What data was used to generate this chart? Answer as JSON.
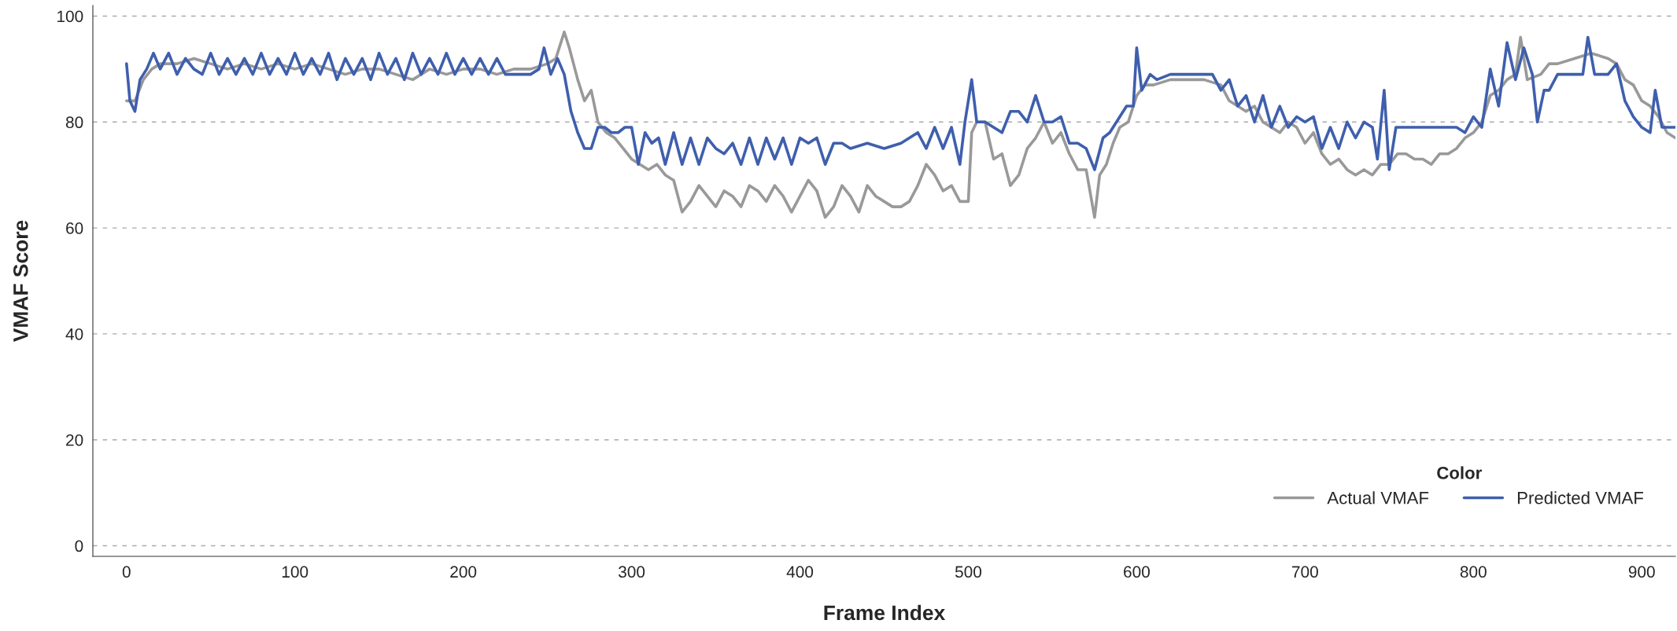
{
  "chart_data": {
    "type": "line",
    "xlabel": "Frame Index",
    "ylabel": "VMAF Score",
    "legend_title": "Color",
    "legend": "bottom right",
    "grid": "y",
    "line_style": "solid",
    "marker": "none",
    "xlim": [
      -20,
      920
    ],
    "ylim": [
      -2,
      102
    ],
    "xticks": [
      0,
      100,
      200,
      300,
      400,
      500,
      600,
      700,
      800,
      900
    ],
    "yticks": [
      0,
      20,
      40,
      60,
      80,
      100
    ],
    "series": [
      {
        "name": "Actual VMAF",
        "color": "#999999",
        "x": [
          0,
          5,
          10,
          15,
          20,
          30,
          40,
          50,
          60,
          70,
          80,
          90,
          100,
          110,
          120,
          130,
          140,
          150,
          160,
          170,
          180,
          190,
          200,
          210,
          220,
          230,
          240,
          250,
          255,
          260,
          263,
          268,
          272,
          276,
          280,
          285,
          290,
          295,
          300,
          305,
          310,
          315,
          320,
          325,
          330,
          335,
          340,
          345,
          350,
          355,
          360,
          365,
          370,
          375,
          380,
          385,
          390,
          395,
          400,
          405,
          410,
          415,
          420,
          425,
          430,
          435,
          440,
          445,
          450,
          455,
          460,
          465,
          470,
          475,
          480,
          485,
          490,
          495,
          500,
          502,
          505,
          510,
          515,
          520,
          525,
          530,
          535,
          540,
          545,
          550,
          555,
          560,
          565,
          570,
          575,
          578,
          582,
          586,
          590,
          595,
          600,
          605,
          610,
          620,
          630,
          640,
          650,
          655,
          660,
          665,
          670,
          675,
          680,
          685,
          690,
          695,
          700,
          705,
          710,
          715,
          720,
          725,
          730,
          735,
          740,
          745,
          750,
          755,
          760,
          765,
          770,
          775,
          780,
          785,
          790,
          795,
          800,
          805,
          810,
          815,
          820,
          825,
          828,
          832,
          840,
          845,
          850,
          860,
          870,
          880,
          885,
          890,
          895,
          900,
          905,
          910,
          915,
          920
        ],
        "values": [
          84,
          84,
          88,
          90,
          91,
          91,
          92,
          91,
          90,
          91,
          90,
          91,
          90,
          91,
          90,
          89,
          90,
          90,
          89,
          88,
          90,
          89,
          90,
          90,
          89,
          90,
          90,
          91,
          92,
          97,
          94,
          88,
          84,
          86,
          80,
          78,
          77,
          75,
          73,
          72,
          71,
          72,
          70,
          69,
          63,
          65,
          68,
          66,
          64,
          67,
          66,
          64,
          68,
          67,
          65,
          68,
          66,
          63,
          66,
          69,
          67,
          62,
          64,
          68,
          66,
          63,
          68,
          66,
          65,
          64,
          64,
          65,
          68,
          72,
          70,
          67,
          68,
          65,
          65,
          78,
          80,
          80,
          73,
          74,
          68,
          70,
          75,
          77,
          80,
          76,
          78,
          74,
          71,
          71,
          62,
          70,
          72,
          76,
          79,
          80,
          85,
          87,
          87,
          88,
          88,
          88,
          87,
          84,
          83,
          82,
          83,
          80,
          79,
          78,
          80,
          79,
          76,
          78,
          74,
          72,
          73,
          71,
          70,
          71,
          70,
          72,
          72,
          74,
          74,
          73,
          73,
          72,
          74,
          74,
          75,
          77,
          78,
          80,
          85,
          86,
          88,
          89,
          96,
          88,
          89,
          91,
          91,
          92,
          93,
          92,
          91,
          88,
          87,
          84,
          83,
          81,
          78,
          77
        ]
      },
      {
        "name": "Predicted VMAF",
        "color": "#3f5fad",
        "x": [
          0,
          2,
          5,
          8,
          12,
          16,
          20,
          25,
          30,
          35,
          40,
          45,
          50,
          55,
          60,
          65,
          70,
          75,
          80,
          85,
          90,
          95,
          100,
          105,
          110,
          115,
          120,
          125,
          130,
          135,
          140,
          145,
          150,
          155,
          160,
          165,
          170,
          175,
          180,
          185,
          190,
          195,
          200,
          205,
          210,
          215,
          220,
          225,
          230,
          240,
          245,
          248,
          252,
          256,
          260,
          264,
          268,
          272,
          276,
          280,
          284,
          288,
          292,
          296,
          300,
          304,
          308,
          312,
          316,
          320,
          325,
          330,
          335,
          340,
          345,
          350,
          355,
          360,
          365,
          370,
          375,
          380,
          385,
          390,
          395,
          400,
          405,
          410,
          415,
          420,
          425,
          430,
          440,
          450,
          460,
          470,
          475,
          480,
          485,
          490,
          495,
          498,
          502,
          505,
          510,
          515,
          520,
          525,
          530,
          535,
          540,
          545,
          550,
          555,
          560,
          565,
          570,
          575,
          580,
          584,
          590,
          594,
          598,
          600,
          603,
          608,
          612,
          620,
          630,
          640,
          645,
          650,
          655,
          660,
          665,
          670,
          675,
          680,
          685,
          690,
          695,
          700,
          705,
          710,
          715,
          720,
          725,
          730,
          735,
          740,
          743,
          747,
          750,
          754,
          760,
          770,
          780,
          790,
          795,
          800,
          805,
          810,
          815,
          820,
          825,
          830,
          835,
          838,
          842,
          845,
          850,
          855,
          860,
          865,
          868,
          872,
          880,
          885,
          890,
          895,
          900,
          905,
          908,
          912,
          916,
          920
        ],
        "values": [
          91,
          84,
          82,
          88,
          90,
          93,
          90,
          93,
          89,
          92,
          90,
          89,
          93,
          89,
          92,
          89,
          92,
          89,
          93,
          89,
          92,
          89,
          93,
          89,
          92,
          89,
          93,
          88,
          92,
          89,
          92,
          88,
          93,
          89,
          92,
          88,
          93,
          89,
          92,
          89,
          93,
          89,
          92,
          89,
          92,
          89,
          92,
          89,
          89,
          89,
          90,
          94,
          89,
          92,
          89,
          82,
          78,
          75,
          75,
          79,
          79,
          78,
          78,
          79,
          79,
          72,
          78,
          76,
          77,
          72,
          78,
          72,
          77,
          72,
          77,
          75,
          74,
          76,
          72,
          77,
          72,
          77,
          73,
          77,
          72,
          77,
          76,
          77,
          72,
          76,
          76,
          75,
          76,
          75,
          76,
          78,
          75,
          79,
          75,
          79,
          72,
          80,
          88,
          80,
          80,
          79,
          78,
          82,
          82,
          80,
          85,
          80,
          80,
          81,
          76,
          76,
          75,
          71,
          77,
          78,
          81,
          83,
          83,
          94,
          86,
          89,
          88,
          89,
          89,
          89,
          89,
          86,
          88,
          83,
          85,
          80,
          85,
          79,
          83,
          79,
          81,
          80,
          81,
          75,
          79,
          75,
          80,
          77,
          80,
          79,
          73,
          86,
          71,
          79,
          79,
          79,
          79,
          79,
          78,
          81,
          79,
          90,
          83,
          95,
          88,
          94,
          89,
          80,
          86,
          86,
          89,
          89,
          89,
          89,
          96,
          89,
          89,
          91,
          84,
          81,
          79,
          78,
          86,
          79,
          79,
          79
        ]
      }
    ]
  }
}
